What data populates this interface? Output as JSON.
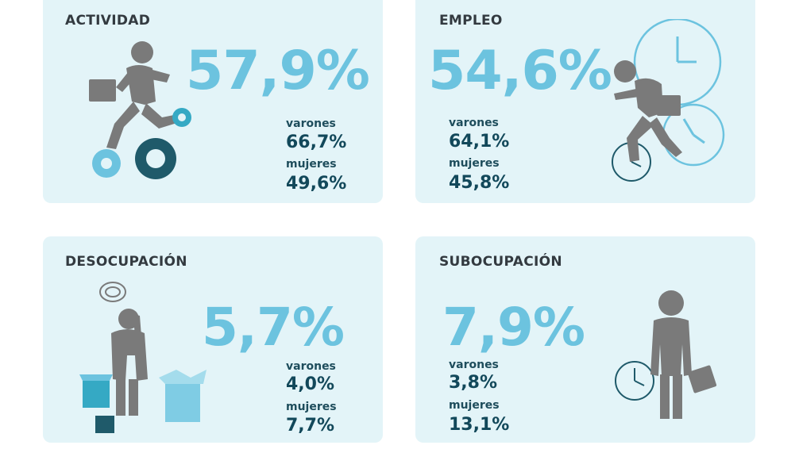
{
  "cards": [
    {
      "title": "ACTIVIDAD",
      "total": "57,9%",
      "varones_label": "varones",
      "varones": "66,7%",
      "mujeres_label": "mujeres",
      "mujeres": "49,6%"
    },
    {
      "title": "EMPLEO",
      "total": "54,6%",
      "varones_label": "varones",
      "varones": "64,1%",
      "mujeres_label": "mujeres",
      "mujeres": "45,8%"
    },
    {
      "title": "DESOCUPACIÓN",
      "total": "5,7%",
      "varones_label": "varones",
      "varones": "4,0%",
      "mujeres_label": "mujeres",
      "mujeres": "7,7%"
    },
    {
      "title": "SUBOCUPACIÓN",
      "total": "7,9%",
      "varones_label": "varones",
      "varones": "3,8%",
      "mujeres_label": "mujeres",
      "mujeres": "13,1%"
    }
  ],
  "colors": {
    "card_bg": "#e3f4f8",
    "big_number": "#6cc3df",
    "value": "#12485a",
    "title": "#333a40",
    "figure": "#7a7a7a",
    "gear_dark": "#1f5a6a",
    "teal": "#35a9c4"
  },
  "icons": [
    "running-man-icon",
    "gears-icon",
    "clocks-icon",
    "confused-man-icon",
    "boxes-icon",
    "standing-man-icon",
    "clock-icon"
  ]
}
